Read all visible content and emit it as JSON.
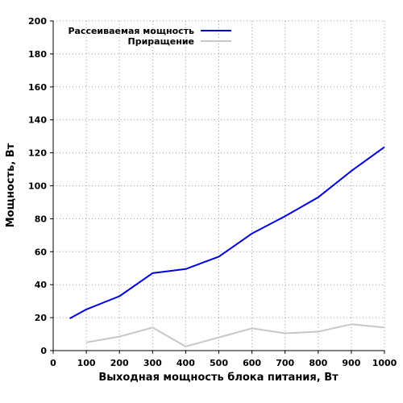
{
  "chart_data": {
    "type": "line",
    "title": "",
    "xlabel": "Выходная мощность блока питания, Вт",
    "ylabel": "Мощность, Вт",
    "xlim": [
      0,
      1000
    ],
    "ylim": [
      0,
      200
    ],
    "xticks": [
      0,
      100,
      200,
      300,
      400,
      500,
      600,
      700,
      800,
      900,
      1000
    ],
    "yticks": [
      0,
      20,
      40,
      60,
      80,
      100,
      120,
      140,
      160,
      180,
      200
    ],
    "grid": true,
    "legend_position": "top-left",
    "series": [
      {
        "name": "Рассеиваемая мощность",
        "color": "#0000dd",
        "x": [
          50,
          100,
          200,
          300,
          400,
          500,
          600,
          700,
          800,
          900,
          1000
        ],
        "y": [
          19.5,
          25,
          33,
          47,
          49.5,
          57,
          71,
          81.5,
          93,
          109,
          123.5
        ]
      },
      {
        "name": "Приращение",
        "color": "#c8c8c8",
        "x": [
          100,
          200,
          300,
          400,
          500,
          600,
          700,
          800,
          900,
          1000
        ],
        "y": [
          5,
          8.5,
          14,
          2.5,
          8,
          13.5,
          10.5,
          11.5,
          16,
          14
        ]
      }
    ]
  }
}
